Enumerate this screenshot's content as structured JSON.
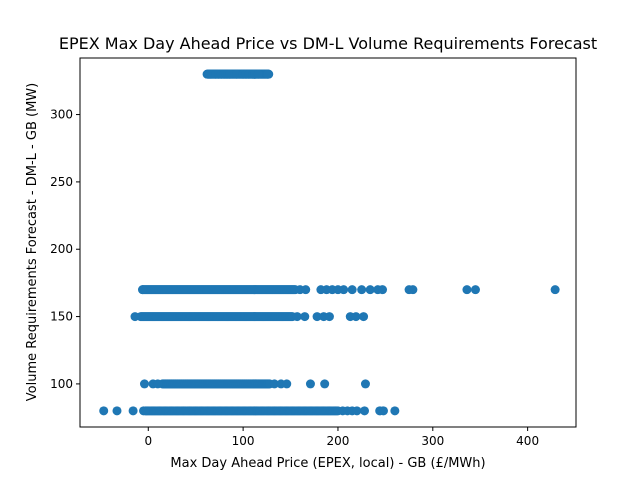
{
  "chart_data": {
    "type": "scatter",
    "title": "EPEX Max Day Ahead Price vs DM-L Volume Requirements Forecast",
    "xlabel": "Max Day Ahead Price (EPEX, local) - GB (£/MWh)",
    "ylabel": "Volume Requirements Forecast - DM-L - GB (MW)",
    "xlim": [
      -72,
      451
    ],
    "ylim": [
      68,
      342
    ],
    "xticks": [
      0,
      100,
      200,
      300,
      400
    ],
    "yticks": [
      100,
      150,
      200,
      250,
      300
    ],
    "grid": false,
    "legend": "none",
    "marker_color": "#1f77b4",
    "bands": [
      {
        "y": 330,
        "x_min": 62,
        "x_max": 127,
        "x_sparse": [
          64,
          66,
          71,
          74,
          77,
          80,
          82,
          84,
          86,
          93,
          100,
          103,
          106,
          110,
          112,
          116,
          126
        ]
      },
      {
        "y": 170,
        "x_min": -6,
        "x_max": 155,
        "x_sparse": [
          -6,
          160,
          166,
          182,
          188,
          194,
          200,
          206,
          215,
          225,
          234,
          242,
          247,
          275,
          279,
          336,
          345,
          429
        ]
      },
      {
        "y": 150,
        "x_min": -8,
        "x_max": 152,
        "x_sparse": [
          -14,
          157,
          165,
          178,
          185,
          191,
          213,
          219,
          227
        ]
      },
      {
        "y": 100,
        "x_min": 15,
        "x_max": 128,
        "x_sparse": [
          -4,
          5,
          10,
          133,
          140,
          146,
          171,
          186,
          229
        ]
      },
      {
        "y": 80,
        "x_min": -2,
        "x_max": 200,
        "x_sparse": [
          -47,
          -33,
          -16,
          -5,
          -3,
          205,
          210,
          215,
          220,
          228,
          244,
          248,
          260
        ]
      }
    ]
  }
}
